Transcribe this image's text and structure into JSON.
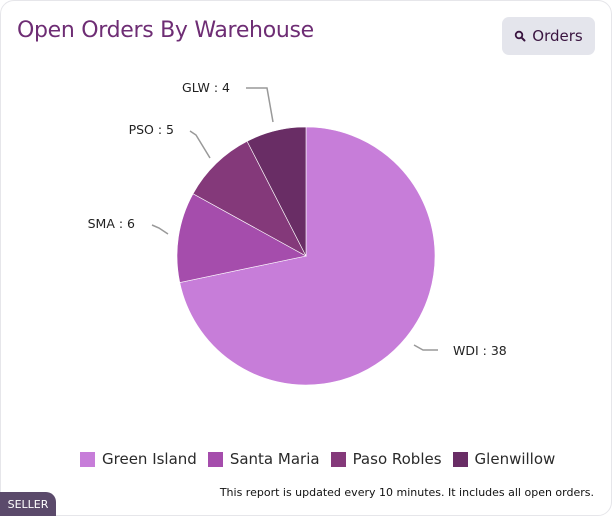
{
  "header": {
    "title": "Open Orders By Warehouse",
    "orders_button_label": "Orders",
    "orders_button_icon": "search-icon"
  },
  "chart_data": {
    "type": "pie",
    "title": "Open Orders By Warehouse",
    "categories": [
      "Green Island",
      "Santa Maria",
      "Paso Robles",
      "Glenwillow"
    ],
    "codes": [
      "WDI",
      "SMA",
      "PSO",
      "GLW"
    ],
    "values": [
      38,
      6,
      5,
      4
    ],
    "colors": [
      "#c77dd9",
      "#a54dac",
      "#84397a",
      "#692d65"
    ],
    "data_labels": [
      "WDI : 38",
      "SMA : 6",
      "PSO : 5",
      "GLW : 4"
    ],
    "legend_position": "bottom",
    "start_angle": "12 o'clock, clockwise"
  },
  "legend": [
    {
      "label": "Green Island",
      "color": "#c77dd9"
    },
    {
      "label": "Santa Maria",
      "color": "#a54dac"
    },
    {
      "label": "Paso Robles",
      "color": "#84397a"
    },
    {
      "label": "Glenwillow",
      "color": "#692d65"
    }
  ],
  "footer": {
    "note": "This report is updated every 10 minutes. It includes all open orders.",
    "badge": "SELLER"
  }
}
